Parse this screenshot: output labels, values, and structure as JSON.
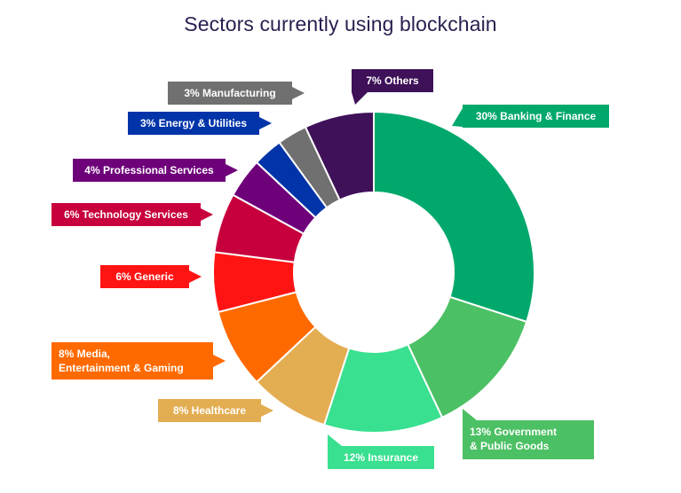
{
  "chart_data": {
    "type": "pie",
    "variant": "donut",
    "title": "Sectors currently using blockchain",
    "legend": "none",
    "slices": [
      {
        "label": "30% Banking & Finance",
        "value": 30,
        "color": "#00a86b",
        "text_color": "#ffffff"
      },
      {
        "label": "13% Government & Public Goods",
        "value": 13,
        "color": "#4cc064",
        "text_color": "#ffffff"
      },
      {
        "label": "12% Insurance",
        "value": 12,
        "color": "#38e08f",
        "text_color": "#ffffff"
      },
      {
        "label": "8% Healthcare",
        "value": 8,
        "color": "#e3ad52",
        "text_color": "#ffffff"
      },
      {
        "label": "8% Media, Entertainment & Gaming",
        "value": 8,
        "color": "#ff6a00",
        "text_color": "#ffffff"
      },
      {
        "label": "6% Generic",
        "value": 6,
        "color": "#ff1414",
        "text_color": "#ffffff"
      },
      {
        "label": "6% Technology Services",
        "value": 6,
        "color": "#c7003d",
        "text_color": "#ffffff"
      },
      {
        "label": "4% Professional Services",
        "value": 4,
        "color": "#6e007a",
        "text_color": "#ffffff"
      },
      {
        "label": "3% Energy & Utilities",
        "value": 3,
        "color": "#0034a8",
        "text_color": "#ffffff"
      },
      {
        "label": "3% Manufacturing",
        "value": 3,
        "color": "#707070",
        "text_color": "#ffffff"
      },
      {
        "label": "7% Others",
        "value": 7,
        "color": "#3e1158",
        "text_color": "#ffffff"
      }
    ]
  }
}
